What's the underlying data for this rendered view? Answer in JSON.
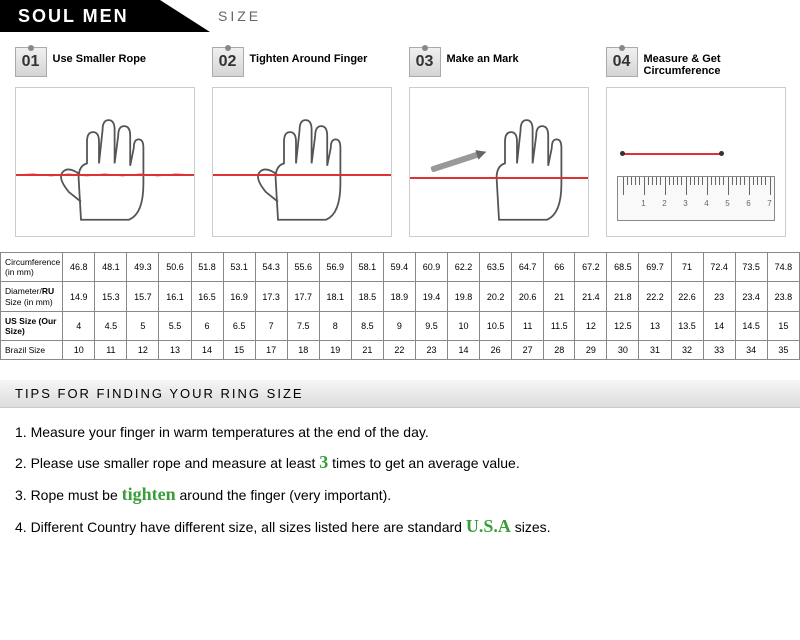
{
  "brand": "SOUL MEN",
  "section_label": "SIZE",
  "steps": [
    {
      "num": "01",
      "title": "Use Smaller Rope"
    },
    {
      "num": "02",
      "title": "Tighten Around Finger"
    },
    {
      "num": "03",
      "title": "Make an Mark"
    },
    {
      "num": "04",
      "title": "Measure & Get Circumference"
    }
  ],
  "table": {
    "row_labels": [
      "Circumference (in mm)",
      "Diameter/<strong>RU</strong> Size (in mm)",
      "<strong>US Size (Our Size)</strong>",
      "Brazil Size"
    ],
    "rows": [
      [
        "46.8",
        "48.1",
        "49.3",
        "50.6",
        "51.8",
        "53.1",
        "54.3",
        "55.6",
        "56.9",
        "58.1",
        "59.4",
        "60.9",
        "62.2",
        "63.5",
        "64.7",
        "66",
        "67.2",
        "68.5",
        "69.7",
        "71",
        "72.4",
        "73.5",
        "74.8"
      ],
      [
        "14.9",
        "15.3",
        "15.7",
        "16.1",
        "16.5",
        "16.9",
        "17.3",
        "17.7",
        "18.1",
        "18.5",
        "18.9",
        "19.4",
        "19.8",
        "20.2",
        "20.6",
        "21",
        "21.4",
        "21.8",
        "22.2",
        "22.6",
        "23",
        "23.4",
        "23.8"
      ],
      [
        "4",
        "4.5",
        "5",
        "5.5",
        "6",
        "6.5",
        "7",
        "7.5",
        "8",
        "8.5",
        "9",
        "9.5",
        "10",
        "10.5",
        "11",
        "11.5",
        "12",
        "12.5",
        "13",
        "13.5",
        "14",
        "14.5",
        "15"
      ],
      [
        "10",
        "11",
        "12",
        "13",
        "14",
        "15",
        "17",
        "18",
        "19",
        "21",
        "22",
        "23",
        "14",
        "26",
        "27",
        "28",
        "29",
        "30",
        "31",
        "32",
        "33",
        "34",
        "35"
      ]
    ]
  },
  "tips_header": "TIPS FOR FINDING YOUR RING SIZE",
  "tips": [
    {
      "pre": "1. Measure your finger in warm temperatures at the end of the day.",
      "hl": "",
      "post": ""
    },
    {
      "pre": "2. Please use smaller rope and measure at least ",
      "hl": "3",
      "post": " times to get an average value."
    },
    {
      "pre": "3. Rope must be ",
      "hl": "tighten",
      "post": " around the finger (very important)."
    },
    {
      "pre": "4. Different Country have different size, all sizes listed here are standard ",
      "hl": "U.S.A",
      "post": " sizes."
    }
  ],
  "colors": {
    "rope": "#d33",
    "highlight": "#3a9d3a",
    "border": "#888"
  },
  "ruler_numbers": [
    "1",
    "2",
    "3",
    "4",
    "5",
    "6",
    "7"
  ]
}
